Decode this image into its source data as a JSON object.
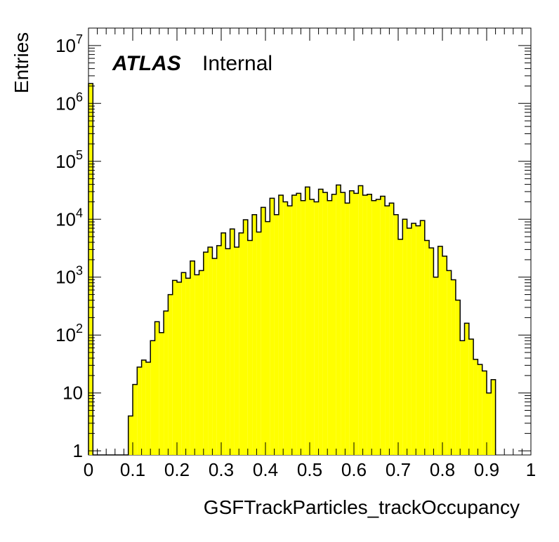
{
  "chart_data": {
    "type": "histogram",
    "xlabel": "GSFTrackParticles_trackOccupancy",
    "ylabel": "Entries",
    "label_bold": "ATLAS",
    "label_text": "Internal",
    "xlim": [
      0,
      1
    ],
    "ylim": [
      0.85,
      20000000
    ],
    "yscale": "log",
    "grid": false,
    "fill_color": "#ffff00",
    "line_color": "#000000",
    "x_ticks": [
      "0",
      "0.1",
      "0.2",
      "0.3",
      "0.4",
      "0.5",
      "0.6",
      "0.7",
      "0.8",
      "0.9",
      "1"
    ],
    "y_ticks": [
      "1",
      "10",
      "10^2",
      "10^3",
      "10^4",
      "10^5",
      "10^6",
      "10^7"
    ],
    "bin_width": 0.01,
    "bin_starts": [
      0.0,
      0.01,
      0.02,
      0.03,
      0.04,
      0.05,
      0.06,
      0.07,
      0.08,
      0.09,
      0.1,
      0.11,
      0.12,
      0.13,
      0.14,
      0.15,
      0.16,
      0.17,
      0.18,
      0.19,
      0.2,
      0.21,
      0.22,
      0.23,
      0.24,
      0.25,
      0.26,
      0.27,
      0.28,
      0.29,
      0.3,
      0.31,
      0.32,
      0.33,
      0.34,
      0.35,
      0.36,
      0.37,
      0.38,
      0.39,
      0.4,
      0.41,
      0.42,
      0.43,
      0.44,
      0.45,
      0.46,
      0.47,
      0.48,
      0.49,
      0.5,
      0.51,
      0.52,
      0.53,
      0.54,
      0.55,
      0.56,
      0.57,
      0.58,
      0.59,
      0.6,
      0.61,
      0.62,
      0.63,
      0.64,
      0.65,
      0.66,
      0.67,
      0.68,
      0.69,
      0.7,
      0.71,
      0.72,
      0.73,
      0.74,
      0.75,
      0.76,
      0.77,
      0.78,
      0.79,
      0.8,
      0.81,
      0.82,
      0.83,
      0.84,
      0.85,
      0.86,
      0.87,
      0.88,
      0.89,
      0.9,
      0.91
    ],
    "values": [
      2200000,
      0,
      0,
      0,
      0,
      0,
      0,
      0,
      0,
      4,
      14,
      28,
      37,
      34,
      80,
      170,
      110,
      260,
      500,
      880,
      820,
      1200,
      960,
      1900,
      1100,
      1300,
      2700,
      3300,
      2100,
      3500,
      5800,
      3100,
      6800,
      3300,
      5800,
      9800,
      4300,
      12000,
      6000,
      16000,
      9100,
      23000,
      12000,
      26000,
      20000,
      17000,
      26000,
      28000,
      21000,
      36000,
      22000,
      20000,
      33000,
      29000,
      21000,
      27000,
      39000,
      29000,
      19000,
      31000,
      28000,
      38000,
      26000,
      27000,
      21000,
      22000,
      25000,
      17000,
      19000,
      12000,
      4500,
      10000,
      7000,
      8500,
      7700,
      9500,
      4300,
      3200,
      1000,
      3400,
      2300,
      1300,
      900,
      400,
      80,
      160,
      85,
      38,
      31,
      24,
      10,
      17
    ]
  }
}
